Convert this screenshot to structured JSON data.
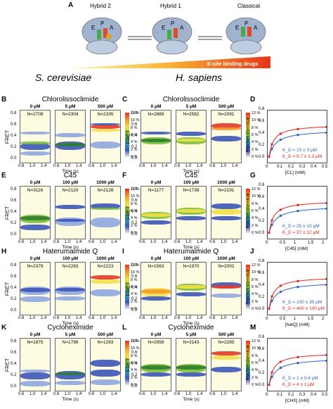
{
  "colors": {
    "kd_blue": "#2b5fc2",
    "kd_red": "#e0261f",
    "panel_bg": "#fdfbe0",
    "drug_arrow": "#f28a1e"
  },
  "schematic": {
    "label": "A",
    "states": [
      "Hybrid 2",
      "Hybrid 1",
      "Classical"
    ],
    "site_letters": [
      "E",
      "P",
      "A"
    ],
    "arrow_text": "E-site binding drugs",
    "species_left": "S. cerevisiae",
    "species_right": "H. sapiens"
  },
  "common": {
    "ylabel": "FRET",
    "xlabel": "Time (s)",
    "yticks": [
      "0.8",
      "0.6",
      "0.4",
      "0.2",
      "0.0"
    ],
    "xticks": [
      "0.6",
      "1.0",
      "1.4"
    ],
    "colorbar": [
      "12 %",
      "10 %",
      "8 %",
      "6 %",
      "4 %",
      "2 %",
      "0 %"
    ],
    "fraction_ylabel": "Fraction classical",
    "fraction_yticks": [
      "0.8",
      "0.6",
      "0.4",
      "0.2",
      "0.0"
    ]
  },
  "rows": [
    {
      "left": {
        "label": "B",
        "title": "Chlorolissoclimide",
        "conc": [
          "0 μM",
          "5 μM",
          "500 μM"
        ],
        "n": [
          "N=2709",
          "N=2304",
          "N=2335"
        ]
      },
      "mid": {
        "label": "C",
        "title": "Chlorolissoclimide",
        "conc": [
          "0 μM",
          "5 μM",
          "500 μM"
        ],
        "n": [
          "N=2889",
          "N=2582",
          "N=2091"
        ]
      },
      "right": {
        "label": "D",
        "xlabel": "[CL] (mM)",
        "xticks": [
          "0",
          "0.1",
          "0.2",
          "0.3",
          "0.4",
          "0.5"
        ],
        "kd_blue": "K_D = 10 ± 3 μM",
        "kd_red": "K_D = 9.7 ± 1.3 μM"
      }
    },
    {
      "left": {
        "label": "E",
        "title": "C45",
        "conc": [
          "0 μM",
          "100 μM",
          "1000 μM"
        ],
        "n": [
          "N=3116",
          "N=2120",
          "N=2128"
        ]
      },
      "mid": {
        "label": "F",
        "title": "C45",
        "conc": [
          "0 μM",
          "100 μM",
          "1000 μM"
        ],
        "n": [
          "N=1177",
          "N=1738",
          "N=2191"
        ]
      },
      "right": {
        "label": "G",
        "xlabel": "[C45] (mM)",
        "xticks": [
          "0",
          "0.5",
          "1",
          "1.5",
          "2"
        ],
        "kd_blue": "K_D = 25 ± 10 μM",
        "kd_red": "K_D = 37 ± 12 μM"
      }
    },
    {
      "left": {
        "label": "H",
        "title": "Haterumaimide Q",
        "conc": [
          "0 μM",
          "100 μM",
          "1000 μM"
        ],
        "n": [
          "N=2379",
          "N=2283",
          "N=2223"
        ]
      },
      "mid": {
        "label": "I",
        "title": "Haterumaimide Q",
        "conc": [
          "0 μM",
          "100 μM",
          "1000 μM"
        ],
        "n": [
          "N=1563",
          "N=1970",
          "N=2002"
        ]
      },
      "right": {
        "label": "J",
        "xlabel": "[hatQ] (mM)",
        "xticks": [
          "0",
          "0.5",
          "1",
          "1.5",
          "2"
        ],
        "kd_blue": "K_D = 100 ± 30 μM",
        "kd_red": "K_D = 400 ± 100 μM"
      }
    },
    {
      "left": {
        "label": "K",
        "title": "Cycloheximide",
        "conc": [
          "0 μM",
          "5 μM",
          "500 μM"
        ],
        "n": [
          "N=1875",
          "N=1796",
          "N=1293"
        ]
      },
      "mid": {
        "label": "L",
        "title": "Cycloheximide",
        "conc": [
          "0 μM",
          "5 μM",
          "500 μM"
        ],
        "n": [
          "N=2958",
          "N=3143",
          "N=2285"
        ]
      },
      "right": {
        "label": "M",
        "xlabel": "[CHX] (mM)",
        "xticks": [
          "0",
          "0.1",
          "0.2",
          "0.3",
          "0.4",
          "0.5"
        ],
        "kd_blue": "K_D = 1 ± 0.4 μM",
        "kd_red": "K_D = 4 ± 1 μM"
      }
    }
  ]
}
